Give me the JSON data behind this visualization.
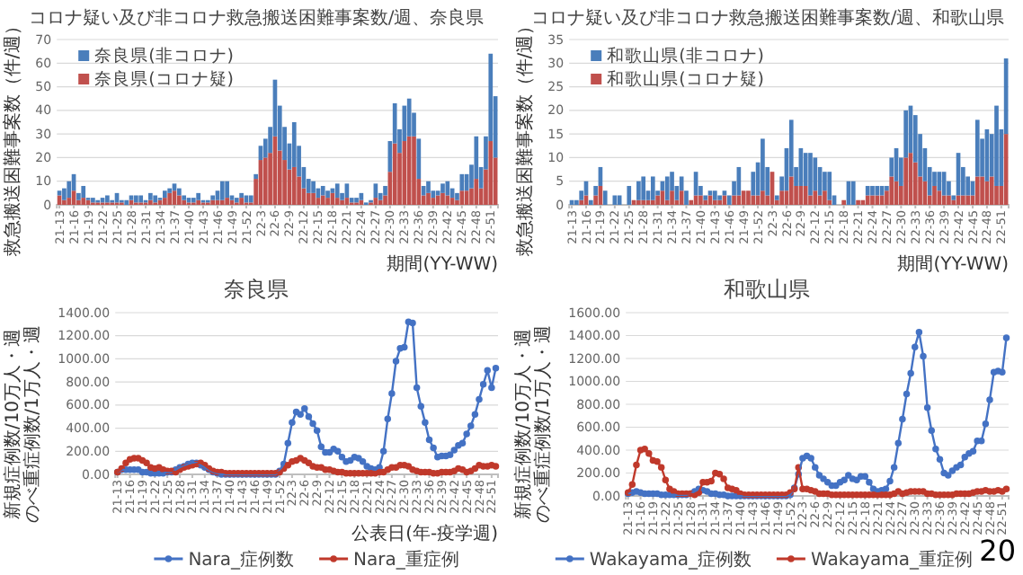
{
  "chart_data": [
    {
      "type": "bar",
      "title": "コロナ疑い及び非コロナ救急搬送困難事案数/週、奈良県",
      "ylabel": "救急搬送困難事案数（件/週）",
      "xlabel": "期間(YY-WW)",
      "stacked": true,
      "ylim": [
        0,
        70
      ],
      "yticks": [
        0,
        10,
        20,
        30,
        40,
        50,
        60,
        70
      ],
      "grid": "y",
      "legend": "top left",
      "categories": [
        "21-13",
        null,
        null,
        "21-16",
        null,
        null,
        "21-19",
        null,
        null,
        "21-22",
        null,
        null,
        "21-25",
        null,
        null,
        "21-28",
        null,
        null,
        "21-31",
        null,
        null,
        "21-34",
        null,
        null,
        "21-37",
        null,
        null,
        "21-40",
        null,
        null,
        "21-43",
        null,
        null,
        "21-46",
        null,
        null,
        "21-49",
        null,
        null,
        "21-52",
        null,
        null,
        "22-3",
        null,
        null,
        "22-6",
        null,
        null,
        "22-9",
        null,
        null,
        "22-12",
        null,
        null,
        "22-15",
        null,
        null,
        "22-18",
        null,
        null,
        "22-21",
        null,
        null,
        "22-24",
        null,
        null,
        "22-27",
        null,
        null,
        "22-30",
        null,
        null,
        "22-33",
        null,
        null,
        "22-36",
        null,
        null,
        "22-39",
        null,
        null,
        "22-42",
        null,
        null,
        "22-45",
        null,
        null,
        "22-48",
        null,
        null,
        "22-51",
        null
      ],
      "series": [
        {
          "name": "奈良県(コロナ疑)",
          "color": "#c0504d",
          "values": [
            4,
            2,
            3,
            6,
            2,
            3,
            2,
            1,
            1,
            1,
            1,
            1,
            1,
            1,
            0,
            2,
            1,
            1,
            1,
            2,
            1,
            2,
            3,
            5,
            6,
            4,
            2,
            1,
            1,
            2,
            1,
            1,
            2,
            2,
            2,
            3,
            2,
            1,
            3,
            1,
            1,
            11,
            19,
            20,
            22,
            29,
            23,
            19,
            15,
            16,
            12,
            7,
            5,
            5,
            3,
            4,
            3,
            5,
            3,
            2,
            3,
            1,
            1,
            2,
            0,
            1,
            3,
            2,
            4,
            14,
            26,
            22,
            27,
            29,
            29,
            11,
            4,
            5,
            3,
            4,
            5,
            4,
            3,
            2,
            6,
            6,
            7,
            11,
            7,
            15,
            27,
            20
          ]
        },
        {
          "name": "奈良県(非コロナ)",
          "color": "#4a7ebb",
          "values": [
            2,
            5,
            7,
            7,
            3,
            5,
            1,
            2,
            1,
            2,
            3,
            1,
            4,
            1,
            2,
            2,
            3,
            3,
            1,
            3,
            3,
            1,
            3,
            2,
            3,
            3,
            2,
            2,
            2,
            3,
            1,
            1,
            2,
            4,
            8,
            7,
            2,
            2,
            2,
            3,
            3,
            2,
            6,
            8,
            11,
            24,
            19,
            14,
            11,
            19,
            13,
            9,
            6,
            5,
            4,
            4,
            3,
            2,
            6,
            3,
            6,
            2,
            2,
            3,
            1,
            1,
            6,
            3,
            4,
            13,
            17,
            10,
            15,
            16,
            10,
            17,
            4,
            5,
            3,
            2,
            4,
            6,
            4,
            3,
            7,
            7,
            10,
            18,
            9,
            14,
            37,
            26
          ]
        }
      ]
    },
    {
      "type": "bar",
      "title": "コロナ疑い及び非コロナ救急搬送困難事案数/週、和歌山県",
      "ylabel": "救急搬送困難事案数（件/週）",
      "xlabel": "期間(YY-WW)",
      "stacked": true,
      "ylim": [
        0,
        35
      ],
      "yticks": [
        0,
        5,
        10,
        15,
        20,
        25,
        30,
        35
      ],
      "grid": "y",
      "legend": "top left",
      "categories": [
        "21-13",
        null,
        null,
        "21-16",
        null,
        null,
        "21-19",
        null,
        null,
        "21-22",
        null,
        null,
        "21-25",
        null,
        null,
        "21-28",
        null,
        null,
        "21-31",
        null,
        null,
        "21-34",
        null,
        null,
        "21-37",
        null,
        null,
        "21-40",
        null,
        null,
        "21-43",
        null,
        null,
        "21-46",
        null,
        null,
        "21-49",
        null,
        null,
        "21-52",
        null,
        null,
        "22-3",
        null,
        null,
        "22-6",
        null,
        null,
        "22-9",
        null,
        null,
        "22-12",
        null,
        null,
        "22-15",
        null,
        null,
        "22-18",
        null,
        null,
        "22-21",
        null,
        null,
        "22-24",
        null,
        null,
        "22-27",
        null,
        null,
        "22-30",
        null,
        null,
        "22-33",
        null,
        null,
        "22-36",
        null,
        null,
        "22-39",
        null,
        null,
        "22-42",
        null,
        null,
        "22-45",
        null,
        null,
        "22-48",
        null,
        null,
        "22-51",
        null
      ],
      "series": [
        {
          "name": "和歌山県(コロナ疑)",
          "color": "#c0504d",
          "values": [
            0,
            0,
            1,
            2,
            0,
            2,
            4,
            0,
            0,
            0,
            0,
            0,
            0,
            1,
            1,
            1,
            1,
            1,
            2,
            3,
            1,
            3,
            1,
            3,
            0,
            1,
            2,
            2,
            1,
            2,
            1,
            1,
            2,
            0,
            2,
            2,
            3,
            3,
            2,
            2,
            3,
            2,
            7,
            1,
            3,
            3,
            6,
            4,
            4,
            4,
            2,
            3,
            2,
            3,
            1,
            0,
            0,
            1,
            0,
            0,
            1,
            1,
            2,
            2,
            2,
            2,
            3,
            6,
            5,
            4,
            10,
            11,
            9,
            6,
            5,
            2,
            4,
            3,
            2,
            2,
            1,
            2,
            2,
            2,
            2,
            6,
            6,
            5,
            6,
            4,
            4,
            15
          ]
        },
        {
          "name": "和歌山県(非コロナ)",
          "color": "#4a7ebb",
          "values": [
            1,
            1,
            2,
            3,
            1,
            2,
            4,
            3,
            0,
            2,
            2,
            0,
            4,
            0,
            4,
            5,
            2,
            5,
            1,
            2,
            5,
            4,
            3,
            3,
            3,
            0,
            5,
            2,
            1,
            1,
            2,
            1,
            1,
            2,
            3,
            6,
            0,
            0,
            5,
            7,
            11,
            6,
            0,
            1,
            3,
            9,
            12,
            4,
            8,
            7,
            9,
            7,
            6,
            4,
            6,
            2,
            0,
            0,
            5,
            5,
            0,
            0,
            2,
            2,
            2,
            2,
            1,
            4,
            7,
            6,
            10,
            10,
            10,
            9,
            7,
            6,
            3,
            4,
            5,
            3,
            1,
            9,
            6,
            4,
            3,
            12,
            8,
            11,
            9,
            17,
            12,
            16
          ]
        }
      ]
    },
    {
      "type": "line",
      "title": "奈良県",
      "ylabel": "新規症例数/10万人・週のべ重症例数/1万人・週",
      "xlabel": "公表日(年-疫学週)",
      "ylim": [
        0,
        1400
      ],
      "yticks": [
        {
          "value": 0,
          "label": "0.00"
        },
        {
          "value": 200,
          "label": "200.00"
        },
        {
          "value": 400,
          "label": "400.00"
        },
        {
          "value": 600,
          "label": "600.00"
        },
        {
          "value": 800,
          "label": "800.00"
        },
        {
          "value": 1000,
          "label": "1000.00"
        },
        {
          "value": 1200,
          "label": "1200.00"
        },
        {
          "value": 1400,
          "label": "1400.00"
        }
      ],
      "grid": "y",
      "legend": "bottom",
      "marker": "circle",
      "categories": [
        "21-13",
        null,
        null,
        "21-16",
        null,
        null,
        "21-19",
        null,
        null,
        "21-22",
        null,
        null,
        "21-25",
        null,
        null,
        "21-28",
        null,
        null,
        "21-31",
        null,
        null,
        "21-34",
        null,
        null,
        "21-37",
        null,
        null,
        "21-40",
        null,
        null,
        "21-43",
        null,
        null,
        "21-46",
        null,
        null,
        "21-49",
        null,
        null,
        "21-52",
        null,
        null,
        "22-3",
        null,
        null,
        "22-6",
        null,
        null,
        "22-9",
        null,
        null,
        "22-12",
        null,
        null,
        "22-15",
        null,
        null,
        "22-18",
        null,
        null,
        "22-21",
        null,
        null,
        "22-24",
        null,
        null,
        "22-27",
        null,
        null,
        "22-30",
        null,
        null,
        "22-33",
        null,
        null,
        "22-36",
        null,
        null,
        "22-39",
        null,
        null,
        "22-42",
        null,
        null,
        "22-45",
        null,
        null,
        "22-48",
        null,
        null,
        "22-51",
        null
      ],
      "series": [
        {
          "name": "Nara_症例数",
          "color": "#4472c4",
          "values": [
            20,
            40,
            40,
            40,
            40,
            40,
            20,
            20,
            10,
            10,
            10,
            10,
            20,
            20,
            40,
            60,
            70,
            90,
            100,
            100,
            80,
            60,
            40,
            20,
            10,
            0,
            0,
            0,
            0,
            0,
            0,
            0,
            0,
            0,
            0,
            0,
            0,
            0,
            0,
            30,
            90,
            270,
            450,
            540,
            520,
            570,
            500,
            440,
            380,
            240,
            190,
            190,
            220,
            200,
            150,
            110,
            120,
            150,
            140,
            110,
            70,
            50,
            40,
            60,
            200,
            480,
            700,
            980,
            1090,
            1100,
            1320,
            1310,
            750,
            590,
            450,
            300,
            230,
            150,
            160,
            160,
            170,
            210,
            250,
            270,
            350,
            420,
            520,
            650,
            780,
            900,
            750,
            920
          ]
        },
        {
          "name": "Nara_重症例",
          "color": "#c0392b",
          "values": [
            20,
            50,
            100,
            130,
            140,
            140,
            120,
            100,
            60,
            50,
            60,
            40,
            30,
            30,
            20,
            40,
            60,
            70,
            80,
            90,
            100,
            80,
            50,
            30,
            20,
            20,
            10,
            10,
            10,
            10,
            10,
            10,
            10,
            10,
            10,
            10,
            10,
            10,
            10,
            20,
            50,
            80,
            110,
            120,
            140,
            120,
            100,
            70,
            60,
            60,
            40,
            40,
            30,
            20,
            20,
            10,
            10,
            10,
            10,
            10,
            10,
            10,
            10,
            20,
            20,
            40,
            60,
            60,
            80,
            80,
            70,
            40,
            30,
            20,
            20,
            20,
            10,
            10,
            20,
            20,
            20,
            30,
            50,
            40,
            20,
            30,
            50,
            80,
            70,
            70,
            80,
            70
          ]
        }
      ]
    },
    {
      "type": "line",
      "title": "和歌山県",
      "ylabel": "新規症例数/10万人・週のべ重症例数/1万人・週",
      "ylim": [
        0,
        1600
      ],
      "yticks": [
        {
          "value": 0,
          "label": "0.00"
        },
        {
          "value": 200,
          "label": "200.00"
        },
        {
          "value": 400,
          "label": "400.00"
        },
        {
          "value": 600,
          "label": "600.00"
        },
        {
          "value": 800,
          "label": "800.00"
        },
        {
          "value": 1000,
          "label": "1000.00"
        },
        {
          "value": 1200,
          "label": "1200.00"
        },
        {
          "value": 1400,
          "label": "1400.00"
        },
        {
          "value": 1600,
          "label": "1600.00"
        }
      ],
      "grid": "y",
      "legend": "bottom",
      "marker": "circle",
      "annotations": [
        "20"
      ],
      "categories": [
        "21-13",
        null,
        null,
        "21-16",
        null,
        null,
        "21-19",
        null,
        null,
        "21-22",
        null,
        null,
        "21-25",
        null,
        null,
        "21-28",
        null,
        null,
        "21-31",
        null,
        null,
        "21-34",
        null,
        null,
        "21-37",
        null,
        null,
        "21-40",
        null,
        null,
        "21-43",
        null,
        null,
        "21-46",
        null,
        null,
        "21-49",
        null,
        null,
        "21-52",
        null,
        null,
        "22-3",
        null,
        null,
        "22-6",
        null,
        null,
        "22-9",
        null,
        null,
        "22-12",
        null,
        null,
        "22-15",
        null,
        null,
        "22-18",
        null,
        null,
        "22-21",
        null,
        null,
        "22-24",
        null,
        null,
        "22-27",
        null,
        null,
        "22-30",
        null,
        null,
        "22-33",
        null,
        null,
        "22-36",
        null,
        null,
        "22-39",
        null,
        null,
        "22-42",
        null,
        null,
        "22-45",
        null,
        null,
        "22-48",
        null,
        null,
        "22-51",
        null
      ],
      "series": [
        {
          "name": "Wakayama_症例数",
          "color": "#4472c4",
          "values": [
            20,
            30,
            40,
            30,
            20,
            20,
            20,
            20,
            10,
            10,
            10,
            10,
            10,
            10,
            10,
            20,
            40,
            60,
            50,
            40,
            20,
            20,
            10,
            10,
            0,
            0,
            0,
            0,
            0,
            0,
            0,
            0,
            0,
            0,
            0,
            0,
            0,
            0,
            0,
            10,
            70,
            190,
            330,
            350,
            330,
            250,
            180,
            150,
            120,
            90,
            90,
            120,
            140,
            180,
            150,
            140,
            170,
            170,
            120,
            60,
            40,
            50,
            60,
            130,
            250,
            460,
            670,
            890,
            1070,
            1300,
            1430,
            1220,
            770,
            570,
            410,
            320,
            200,
            180,
            220,
            250,
            270,
            340,
            370,
            390,
            480,
            480,
            630,
            840,
            1080,
            1090,
            1080,
            1380
          ]
        },
        {
          "name": "Wakayama_重症例",
          "color": "#c0392b",
          "values": [
            30,
            100,
            270,
            400,
            410,
            370,
            310,
            300,
            250,
            140,
            60,
            40,
            20,
            20,
            20,
            20,
            10,
            30,
            120,
            120,
            130,
            200,
            190,
            150,
            70,
            60,
            50,
            20,
            10,
            10,
            10,
            10,
            10,
            10,
            10,
            10,
            10,
            10,
            10,
            30,
            60,
            250,
            60,
            60,
            50,
            40,
            20,
            20,
            20,
            10,
            10,
            10,
            10,
            10,
            10,
            10,
            10,
            10,
            10,
            10,
            10,
            10,
            10,
            10,
            20,
            40,
            20,
            30,
            40,
            40,
            40,
            40,
            20,
            20,
            10,
            10,
            10,
            10,
            10,
            20,
            20,
            20,
            20,
            30,
            40,
            40,
            50,
            40,
            40,
            50,
            40,
            60
          ]
        }
      ]
    }
  ]
}
